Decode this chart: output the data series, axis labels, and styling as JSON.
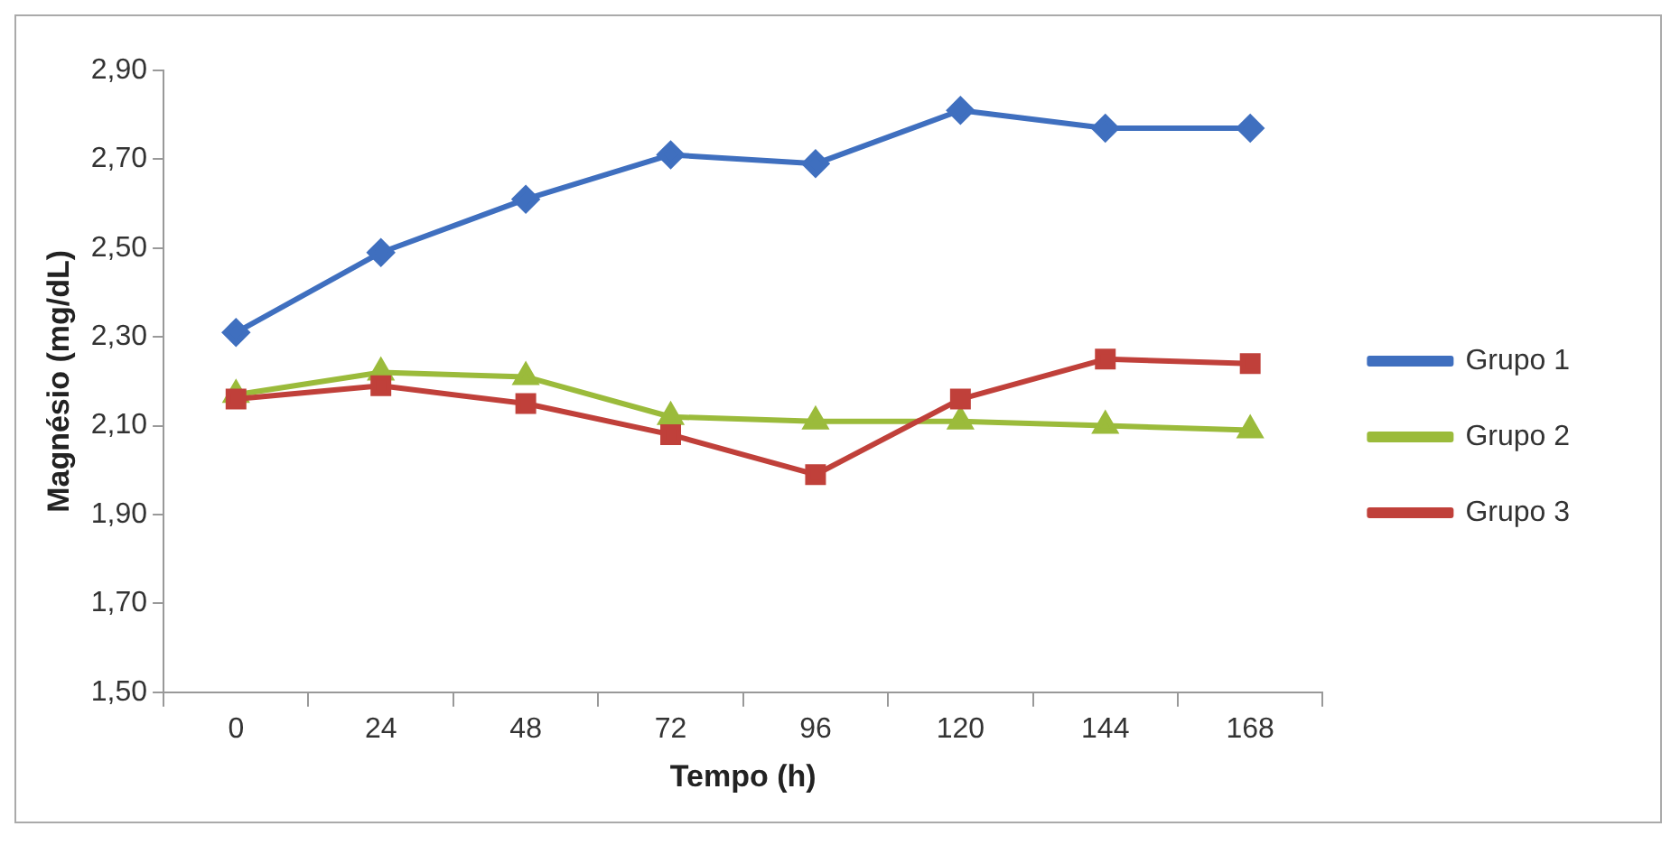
{
  "chart_data": {
    "type": "line",
    "xlabel": "Tempo (h)",
    "ylabel": "Magnésio (mg/dL)",
    "categories": [
      "0",
      "24",
      "48",
      "72",
      "96",
      "120",
      "144",
      "168"
    ],
    "series": [
      {
        "name": "Grupo 1",
        "color": "#3f6fbf",
        "marker": "diamond",
        "values": [
          2.31,
          2.49,
          2.61,
          2.71,
          2.69,
          2.81,
          2.77,
          2.77
        ]
      },
      {
        "name": "Grupo 2",
        "color": "#9bbb3b",
        "marker": "triangle",
        "values": [
          2.17,
          2.22,
          2.21,
          2.12,
          2.11,
          2.11,
          2.1,
          2.09
        ]
      },
      {
        "name": "Grupo 3",
        "color": "#c0403a",
        "marker": "square",
        "values": [
          2.16,
          2.19,
          2.15,
          2.08,
          1.99,
          2.16,
          2.25,
          2.24
        ]
      }
    ],
    "ylim": [
      1.5,
      2.9
    ],
    "yticks": [
      {
        "value": 1.5,
        "label": "1,50"
      },
      {
        "value": 1.7,
        "label": "1,70"
      },
      {
        "value": 1.9,
        "label": "1,90"
      },
      {
        "value": 2.1,
        "label": "2,10"
      },
      {
        "value": 2.3,
        "label": "2,30"
      },
      {
        "value": 2.5,
        "label": "2,50"
      },
      {
        "value": 2.7,
        "label": "2,70"
      },
      {
        "value": 2.9,
        "label": "2,90"
      }
    ],
    "grid": false,
    "legend": "right",
    "line_style": "solid"
  }
}
